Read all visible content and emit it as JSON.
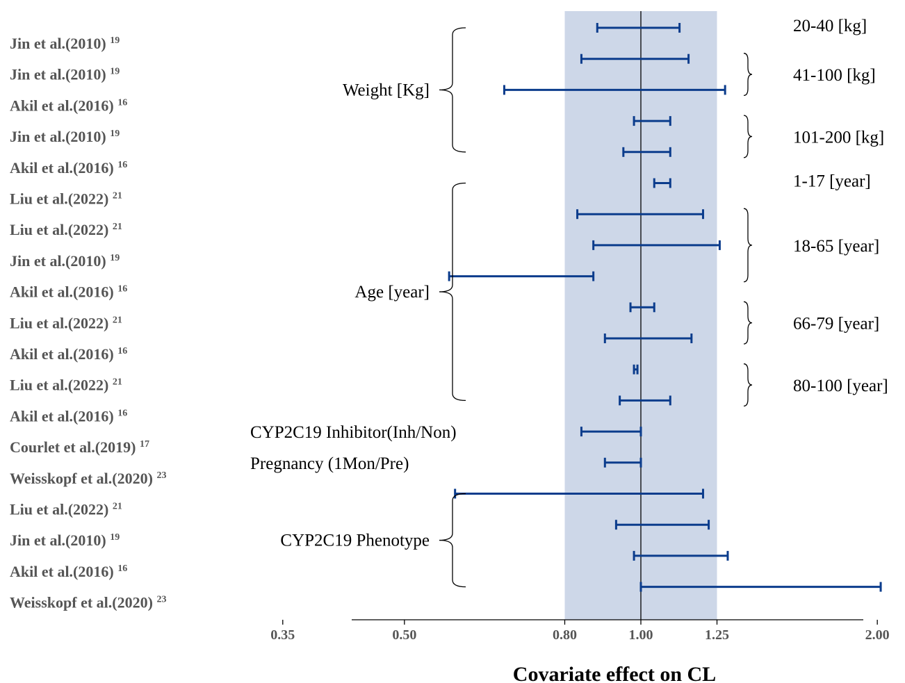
{
  "chart_data": {
    "type": "forest",
    "xlabel": "Covariate effect on CL",
    "x_scale": "log",
    "xlim": [
      0.3,
      2.3
    ],
    "x_ticks": [
      "0.35",
      "0.50",
      "0.80",
      "1.00",
      "1.25",
      "2.00"
    ],
    "reference_line": 1.0,
    "reference_band": [
      0.8,
      1.25
    ],
    "colors": {
      "ci": "#0b3c8c",
      "band": "#cdd7e8",
      "study_text": "#555555"
    },
    "rows": [
      {
        "study": "Jin et al.(2010)",
        "ref": "19",
        "lower": 0.88,
        "upper": 1.12
      },
      {
        "study": "Jin et al.(2010)",
        "ref": "19",
        "lower": 0.84,
        "upper": 1.15
      },
      {
        "study": "Akil et al.(2016)",
        "ref": "16",
        "lower": 0.67,
        "upper": 1.28
      },
      {
        "study": "Jin et al.(2010)",
        "ref": "19",
        "lower": 0.98,
        "upper": 1.09
      },
      {
        "study": "Akil et al.(2016)",
        "ref": "16",
        "lower": 0.95,
        "upper": 1.09
      },
      {
        "study": "Liu et al.(2022)",
        "ref": "21",
        "lower": 1.04,
        "upper": 1.09
      },
      {
        "study": "Liu et al.(2022)",
        "ref": "21",
        "lower": 0.83,
        "upper": 1.2
      },
      {
        "study": "Jin et al.(2010)",
        "ref": "19",
        "lower": 0.87,
        "upper": 1.26
      },
      {
        "study": "Akil et al.(2016)",
        "ref": "16",
        "lower": 0.57,
        "upper": 0.87
      },
      {
        "study": "Liu et al.(2022)",
        "ref": "21",
        "lower": 0.97,
        "upper": 1.04
      },
      {
        "study": "Akil et al.(2016)",
        "ref": "16",
        "lower": 0.9,
        "upper": 1.16
      },
      {
        "study": "Liu et al.(2022)",
        "ref": "21",
        "lower": 0.98,
        "upper": 0.99
      },
      {
        "study": "Akil et al.(2016)",
        "ref": "16",
        "lower": 0.94,
        "upper": 1.09
      },
      {
        "study": "Courlet et al.(2019)",
        "ref": "17",
        "lower": 0.84,
        "upper": 1.0
      },
      {
        "study": "Weisskopf et al.(2020)",
        "ref": "23",
        "lower": 0.9,
        "upper": 1.0
      },
      {
        "study": "Liu et al.(2022)",
        "ref": "21",
        "lower": 0.58,
        "upper": 1.2
      },
      {
        "study": "Jin et al.(2010)",
        "ref": "19",
        "lower": 0.93,
        "upper": 1.22
      },
      {
        "study": "Akil et al.(2016)",
        "ref": "16",
        "lower": 0.98,
        "upper": 1.29
      },
      {
        "study": "Weisskopf et al.(2020)",
        "ref": "23",
        "lower": 1.0,
        "upper": 2.02
      }
    ],
    "covariate_groups": [
      {
        "label": "Weight [Kg]",
        "first_row": 0,
        "last_row": 4
      },
      {
        "label": "Age [year]",
        "first_row": 5,
        "last_row": 12
      },
      {
        "label": "CYP2C19 Inhibitor(Inh/Non)",
        "first_row": 13,
        "last_row": 13
      },
      {
        "label": "Pregnancy (1Mon/Pre)",
        "first_row": 14,
        "last_row": 14
      },
      {
        "label": "CYP2C19 Phenotype",
        "first_row": 15,
        "last_row": 18
      }
    ],
    "subgroups": [
      {
        "label": "20-40 [kg]",
        "first_row": 0,
        "last_row": 0
      },
      {
        "label": "41-100 [kg]",
        "first_row": 1,
        "last_row": 2
      },
      {
        "label": "101-200 [kg]",
        "first_row": 3,
        "last_row": 4
      },
      {
        "label": "1-17 [year]",
        "first_row": 5,
        "last_row": 5
      },
      {
        "label": "18-65 [year]",
        "first_row": 6,
        "last_row": 8
      },
      {
        "label": "66-79 [year]",
        "first_row": 9,
        "last_row": 10
      },
      {
        "label": "80-100 [year]",
        "first_row": 11,
        "last_row": 12
      }
    ]
  }
}
